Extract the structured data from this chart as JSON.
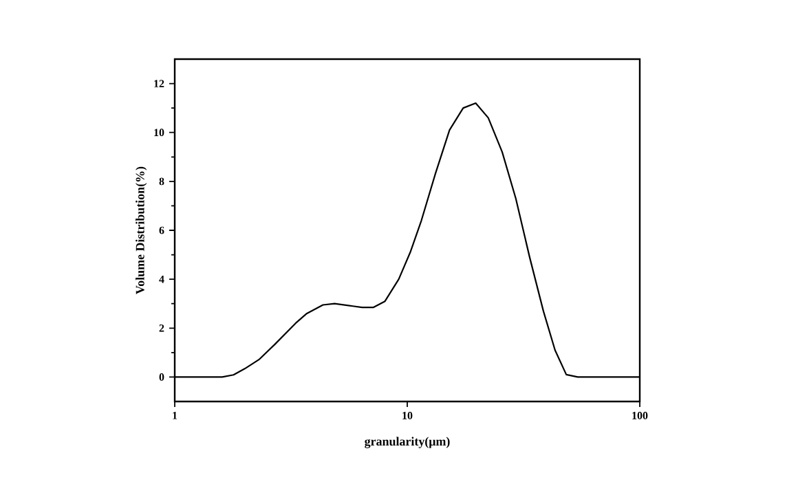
{
  "chart_data": {
    "type": "line",
    "xlabel": "granularity(μm)",
    "ylabel": "Volume Distribution(%)",
    "log": "x",
    "xlim": [
      1,
      100
    ],
    "ylim": [
      -1,
      13
    ],
    "xticks": [
      1,
      10,
      100
    ],
    "yticks": [
      0,
      2,
      4,
      6,
      8,
      10,
      12
    ],
    "grid": false,
    "marker": "none",
    "line_style": "solid",
    "series": [
      {
        "color": "#000000",
        "x": [
          1,
          1.6,
          1.79,
          2.0,
          2.3,
          2.69,
          3.31,
          3.7,
          4.34,
          4.87,
          5.83,
          6.39,
          7.16,
          8.02,
          9.19,
          10.3,
          11.5,
          13.2,
          15.2,
          17.4,
          19.7,
          22.3,
          25.6,
          29.3,
          33.6,
          38.5,
          43.2,
          48.3,
          54.1,
          100
        ],
        "values": [
          0,
          0,
          0.09,
          0.34,
          0.71,
          1.33,
          2.2,
          2.6,
          2.95,
          3.0,
          2.9,
          2.85,
          2.85,
          3.1,
          4.0,
          5.1,
          6.4,
          8.3,
          10.1,
          11.0,
          11.2,
          10.6,
          9.2,
          7.3,
          4.9,
          2.7,
          1.1,
          0.1,
          0,
          0
        ]
      }
    ]
  }
}
